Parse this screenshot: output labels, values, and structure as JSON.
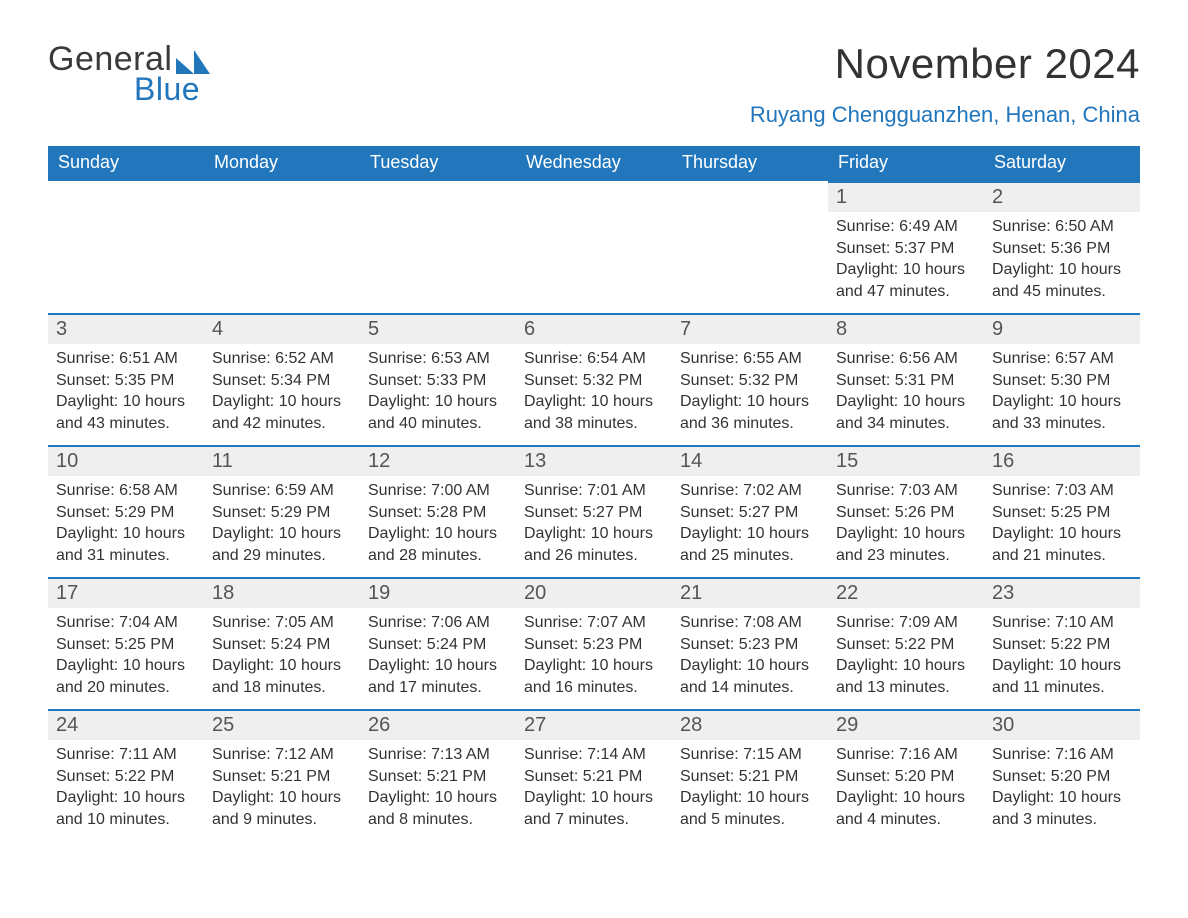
{
  "logo": {
    "line1": "General",
    "line2": "Blue",
    "tri_color": "#2176bc"
  },
  "header": {
    "month_title": "November 2024",
    "location": "Ruyang Chengguanzhen, Henan, China"
  },
  "calendar": {
    "day_headers": [
      "Sunday",
      "Monday",
      "Tuesday",
      "Wednesday",
      "Thursday",
      "Friday",
      "Saturday"
    ],
    "header_bg": "#2176bc",
    "header_fg": "#ffffff",
    "daynum_bg": "#efefef",
    "daynum_border": "#2176bc",
    "text_color": "#333333",
    "weeks": [
      [
        null,
        null,
        null,
        null,
        null,
        {
          "n": "1",
          "sunrise": "6:49 AM",
          "sunset": "5:37 PM",
          "daylight": "10 hours and 47 minutes."
        },
        {
          "n": "2",
          "sunrise": "6:50 AM",
          "sunset": "5:36 PM",
          "daylight": "10 hours and 45 minutes."
        }
      ],
      [
        {
          "n": "3",
          "sunrise": "6:51 AM",
          "sunset": "5:35 PM",
          "daylight": "10 hours and 43 minutes."
        },
        {
          "n": "4",
          "sunrise": "6:52 AM",
          "sunset": "5:34 PM",
          "daylight": "10 hours and 42 minutes."
        },
        {
          "n": "5",
          "sunrise": "6:53 AM",
          "sunset": "5:33 PM",
          "daylight": "10 hours and 40 minutes."
        },
        {
          "n": "6",
          "sunrise": "6:54 AM",
          "sunset": "5:32 PM",
          "daylight": "10 hours and 38 minutes."
        },
        {
          "n": "7",
          "sunrise": "6:55 AM",
          "sunset": "5:32 PM",
          "daylight": "10 hours and 36 minutes."
        },
        {
          "n": "8",
          "sunrise": "6:56 AM",
          "sunset": "5:31 PM",
          "daylight": "10 hours and 34 minutes."
        },
        {
          "n": "9",
          "sunrise": "6:57 AM",
          "sunset": "5:30 PM",
          "daylight": "10 hours and 33 minutes."
        }
      ],
      [
        {
          "n": "10",
          "sunrise": "6:58 AM",
          "sunset": "5:29 PM",
          "daylight": "10 hours and 31 minutes."
        },
        {
          "n": "11",
          "sunrise": "6:59 AM",
          "sunset": "5:29 PM",
          "daylight": "10 hours and 29 minutes."
        },
        {
          "n": "12",
          "sunrise": "7:00 AM",
          "sunset": "5:28 PM",
          "daylight": "10 hours and 28 minutes."
        },
        {
          "n": "13",
          "sunrise": "7:01 AM",
          "sunset": "5:27 PM",
          "daylight": "10 hours and 26 minutes."
        },
        {
          "n": "14",
          "sunrise": "7:02 AM",
          "sunset": "5:27 PM",
          "daylight": "10 hours and 25 minutes."
        },
        {
          "n": "15",
          "sunrise": "7:03 AM",
          "sunset": "5:26 PM",
          "daylight": "10 hours and 23 minutes."
        },
        {
          "n": "16",
          "sunrise": "7:03 AM",
          "sunset": "5:25 PM",
          "daylight": "10 hours and 21 minutes."
        }
      ],
      [
        {
          "n": "17",
          "sunrise": "7:04 AM",
          "sunset": "5:25 PM",
          "daylight": "10 hours and 20 minutes."
        },
        {
          "n": "18",
          "sunrise": "7:05 AM",
          "sunset": "5:24 PM",
          "daylight": "10 hours and 18 minutes."
        },
        {
          "n": "19",
          "sunrise": "7:06 AM",
          "sunset": "5:24 PM",
          "daylight": "10 hours and 17 minutes."
        },
        {
          "n": "20",
          "sunrise": "7:07 AM",
          "sunset": "5:23 PM",
          "daylight": "10 hours and 16 minutes."
        },
        {
          "n": "21",
          "sunrise": "7:08 AM",
          "sunset": "5:23 PM",
          "daylight": "10 hours and 14 minutes."
        },
        {
          "n": "22",
          "sunrise": "7:09 AM",
          "sunset": "5:22 PM",
          "daylight": "10 hours and 13 minutes."
        },
        {
          "n": "23",
          "sunrise": "7:10 AM",
          "sunset": "5:22 PM",
          "daylight": "10 hours and 11 minutes."
        }
      ],
      [
        {
          "n": "24",
          "sunrise": "7:11 AM",
          "sunset": "5:22 PM",
          "daylight": "10 hours and 10 minutes."
        },
        {
          "n": "25",
          "sunrise": "7:12 AM",
          "sunset": "5:21 PM",
          "daylight": "10 hours and 9 minutes."
        },
        {
          "n": "26",
          "sunrise": "7:13 AM",
          "sunset": "5:21 PM",
          "daylight": "10 hours and 8 minutes."
        },
        {
          "n": "27",
          "sunrise": "7:14 AM",
          "sunset": "5:21 PM",
          "daylight": "10 hours and 7 minutes."
        },
        {
          "n": "28",
          "sunrise": "7:15 AM",
          "sunset": "5:21 PM",
          "daylight": "10 hours and 5 minutes."
        },
        {
          "n": "29",
          "sunrise": "7:16 AM",
          "sunset": "5:20 PM",
          "daylight": "10 hours and 4 minutes."
        },
        {
          "n": "30",
          "sunrise": "7:16 AM",
          "sunset": "5:20 PM",
          "daylight": "10 hours and 3 minutes."
        }
      ]
    ],
    "labels": {
      "sunrise": "Sunrise:",
      "sunset": "Sunset:",
      "daylight": "Daylight:"
    }
  }
}
